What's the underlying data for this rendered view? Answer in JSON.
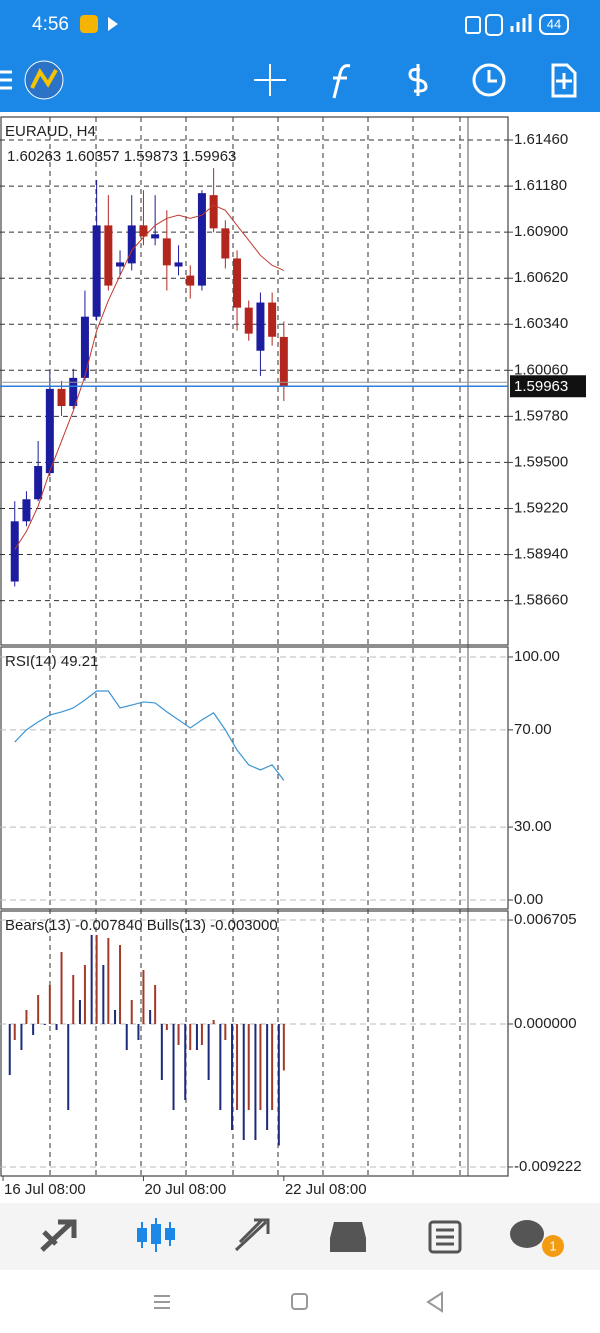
{
  "status_bar": {
    "time": "4:56",
    "battery": "44"
  },
  "chart_data": [
    {
      "type": "candlestick",
      "title": "EURAUD, H4",
      "subtitle": "1.60263 1.60357 1.59873 1.59963",
      "open": [
        1.58776,
        1.59142,
        1.59276,
        1.59435,
        1.59947,
        1.59843,
        1.60014,
        1.60386,
        1.60941,
        1.60691,
        1.6071,
        1.60941,
        1.60862,
        1.60862,
        1.60691,
        1.60636,
        1.60575,
        1.61125,
        1.60923,
        1.6074,
        1.60441,
        1.60179,
        1.60472,
        1.60263
      ],
      "high": [
        1.59264,
        1.59325,
        1.5963,
        1.60057,
        1.59996,
        1.60069,
        1.60545,
        1.61216,
        1.61125,
        1.60789,
        1.61125,
        1.61155,
        1.61125,
        1.61033,
        1.6082,
        1.60698,
        1.61155,
        1.61289,
        1.60972,
        1.60789,
        1.60484,
        1.60533,
        1.60533,
        1.60357
      ],
      "low": [
        1.58746,
        1.59112,
        1.59264,
        1.59417,
        1.59782,
        1.59825,
        1.59996,
        1.60362,
        1.60545,
        1.60637,
        1.60667,
        1.6082,
        1.6082,
        1.60545,
        1.60637,
        1.60496,
        1.60545,
        1.60899,
        1.60679,
        1.60301,
        1.6024,
        1.60026,
        1.6021,
        1.59873
      ],
      "close": [
        1.59142,
        1.59276,
        1.59478,
        1.59947,
        1.59843,
        1.60014,
        1.60386,
        1.60941,
        1.60575,
        1.60716,
        1.60941,
        1.60874,
        1.60887,
        1.60698,
        1.60716,
        1.60575,
        1.61137,
        1.60923,
        1.6074,
        1.60441,
        1.60283,
        1.60472,
        1.60264,
        1.59963
      ],
      "ma_values": [
        1.58971,
        1.59081,
        1.59234,
        1.59447,
        1.5963,
        1.59813,
        1.60026,
        1.60301,
        1.60484,
        1.60637,
        1.60789,
        1.60868,
        1.60941,
        1.60984,
        1.61003,
        1.60984,
        1.61003,
        1.61064,
        1.61033,
        1.60941,
        1.6085,
        1.60759,
        1.60698,
        1.60667
      ],
      "up_color": "#1c1c9e",
      "down_color": "#b3261e",
      "ma_color": "#c0392b",
      "last_color": "#2f7fd8",
      "xlim": [
        -1.26,
        42.16
      ],
      "ylim": [
        1.5839,
        1.616
      ],
      "yticks": [
        {
          "value": 1.6146,
          "label": "1.61460"
        },
        {
          "value": 1.6118,
          "label": "1.61180"
        },
        {
          "value": 1.609,
          "label": "1.60900"
        },
        {
          "value": 1.6062,
          "label": "1.60620"
        },
        {
          "value": 1.6034,
          "label": "1.60340"
        },
        {
          "value": 1.6006,
          "label": "1.60060"
        },
        {
          "value": 1.5978,
          "label": "1.59780"
        },
        {
          "value": 1.595,
          "label": "1.59500"
        },
        {
          "value": 1.5922,
          "label": "1.59220"
        },
        {
          "value": 1.5894,
          "label": "1.58940"
        },
        {
          "value": 1.5866,
          "label": "1.58660"
        }
      ],
      "grid": true
    },
    {
      "type": "line",
      "title": "RSI(14) 49.21",
      "color": "#3a96d4",
      "values": [
        65.0,
        70.0,
        73.3,
        76.1,
        77.4,
        79.0,
        82.3,
        86.0,
        86.0,
        79.0,
        80.2,
        81.5,
        81.1,
        77.4,
        74.1,
        70.8,
        74.1,
        77.0,
        70.0,
        61.7,
        55.6,
        53.5,
        55.6,
        49.21
      ],
      "xlim": [
        -1.26,
        42.16
      ],
      "ylim": [
        -3.7,
        104.1
      ],
      "yticks": [
        {
          "value": 100,
          "label": "100.00"
        },
        {
          "value": 70,
          "label": "70.00"
        },
        {
          "value": 30,
          "label": "30.00"
        },
        {
          "value": 0,
          "label": "0.00"
        }
      ],
      "grid": true
    },
    {
      "type": "bar",
      "title": "Bears(13) -0.007840 Bulls(13) -0.003000",
      "series": [
        {
          "color": "#a33a28",
          "values": [
            -0.001032,
            0.000903,
            0.001871,
            0.002516,
            0.004644,
            0.003161,
            0.003806,
            0.005741,
            0.005547,
            0.005096,
            0.001548,
            0.003483,
            0.002516,
            -0.000387,
            -0.001355,
            -0.001677,
            -0.001355,
            0.000258,
            -0.001032,
            -0.005547,
            -0.005547,
            -0.005547,
            -0.005547,
            -0.003
          ]
        },
        {
          "color": "#1c2a7a",
          "values": [
            -0.00329,
            -0.001677,
            -0.00071,
            -6.5e-05,
            -0.000387,
            -0.005547,
            0.001548,
            0.005741,
            0.003806,
            0.000903,
            -0.001677,
            -0.001032,
            0.000903,
            -0.003612,
            -0.005547,
            -0.004902,
            -0.001677,
            -0.003612,
            -0.005547,
            -0.006837,
            -0.007482,
            -0.007482,
            -0.006837,
            -0.00784
          ]
        }
      ],
      "xlim": [
        -1.26,
        42.16
      ],
      "ylim": [
        -0.009804,
        0.007289
      ],
      "yticks": [
        0.006705,
        {
          "value": 0,
          "label": "0.000000"
        },
        -0.009222
      ],
      "xticks": [
        {
          "value": -1,
          "label": "16 Jul 08:00"
        },
        {
          "value": 11,
          "label": "20 Jul 08:00"
        },
        {
          "value": 23,
          "label": "22 Jul 08:00"
        }
      ],
      "grid": true
    }
  ],
  "bottom_nav": {
    "badge": "1"
  }
}
